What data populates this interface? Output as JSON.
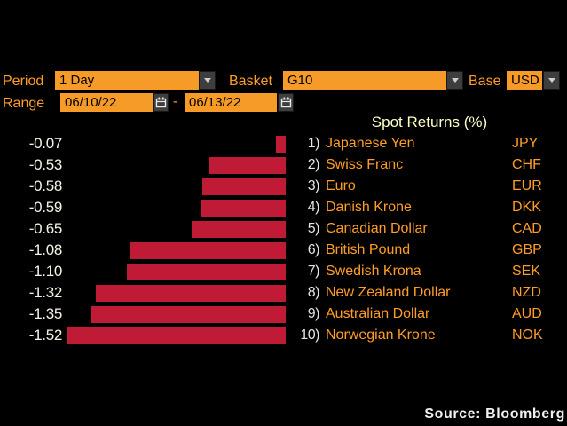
{
  "controls": {
    "period": {
      "label": "Period",
      "value": "1 Day"
    },
    "basket": {
      "label": "Basket",
      "value": "G10"
    },
    "base": {
      "label": "Base",
      "value": "USD"
    },
    "range": {
      "label": "Range",
      "start": "06/10/22",
      "separator": "-",
      "end": "06/13/22"
    }
  },
  "chart_data": {
    "type": "bar",
    "orientation": "horizontal",
    "title": "Spot Returns (%)",
    "categories": [
      "Japanese Yen",
      "Swiss Franc",
      "Euro",
      "Danish Krone",
      "Canadian Dollar",
      "British Pound",
      "Swedish Krona",
      "New Zealand Dollar",
      "Australian Dollar",
      "Norwegian Krone"
    ],
    "codes": [
      "JPY",
      "CHF",
      "EUR",
      "DKK",
      "CAD",
      "GBP",
      "SEK",
      "NZD",
      "AUD",
      "NOK"
    ],
    "ranks": [
      "1)",
      "2)",
      "3)",
      "4)",
      "5)",
      "6)",
      "7)",
      "8)",
      "9)",
      "10)"
    ],
    "values": [
      -0.07,
      -0.53,
      -0.58,
      -0.59,
      -0.65,
      -1.08,
      -1.1,
      -1.32,
      -1.35,
      -1.52
    ],
    "value_labels": [
      "-0.07",
      "-0.53",
      "-0.58",
      "-0.59",
      "-0.65",
      "-1.08",
      "-1.10",
      "-1.32",
      "-1.35",
      "-1.52"
    ],
    "xlim": [
      -1.52,
      0
    ],
    "grid": "off",
    "bar_color": "#bf1a36"
  },
  "footer": {
    "source": "Source:  Bloomberg"
  },
  "colors": {
    "background": "#000000",
    "amber_text": "#ff9d28",
    "field_background": "#f79b28",
    "field_text": "#000000",
    "title_text": "#ffffc8",
    "value_text": "#f5f2e5",
    "rank_text": "#e4e4e4",
    "bar": "#bf1a36",
    "source_text": "#f0f0f0",
    "button_background": "#3e3e3e"
  }
}
